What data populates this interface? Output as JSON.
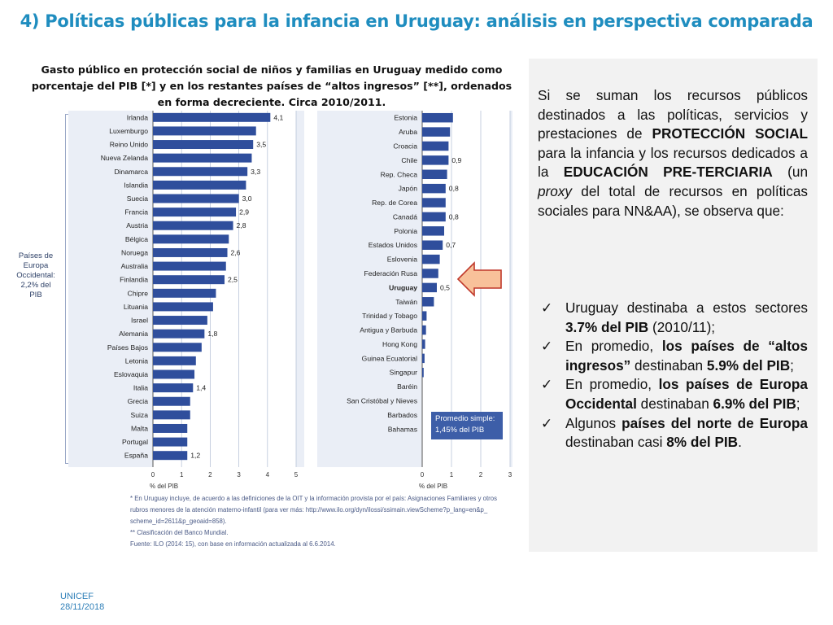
{
  "title": "4) Políticas públicas para la infancia en Uruguay: análisis en perspectiva comparada",
  "chart_heading": "Gasto público en protección social de niños y familias en Uruguay medido como porcentaje del PIB [*] y en los restantes países de “altos ingresos” [**], ordenados en forma decreciente. Circa 2010/2011.",
  "chart_data": [
    {
      "type": "bar",
      "orientation": "horizontal",
      "categories": [
        "Irlanda",
        "Luxemburgo",
        "Reino Unido",
        "Nueva Zelanda",
        "Dinamarca",
        "Islandia",
        "Suecia",
        "Francia",
        "Austria",
        "Bélgica",
        "Noruega",
        "Australia",
        "Finlandia",
        "Chipre",
        "Lituania",
        "Israel",
        "Alemania",
        "Países Bajos",
        "Letonia",
        "Eslovaquia",
        "Italia",
        "Grecia",
        "Suiza",
        "Malta",
        "Portugal",
        "España"
      ],
      "values": [
        4.1,
        3.6,
        3.5,
        3.45,
        3.3,
        3.25,
        3.0,
        2.9,
        2.8,
        2.65,
        2.6,
        2.55,
        2.5,
        2.2,
        2.1,
        1.9,
        1.8,
        1.7,
        1.5,
        1.45,
        1.4,
        1.3,
        1.3,
        1.2,
        1.2,
        1.2
      ],
      "value_labels": [
        "4,1",
        "",
        "3,5",
        "",
        "3,3",
        "",
        "3,0",
        "2,9",
        "2,8",
        "",
        "2,6",
        "",
        "2,5",
        "",
        "",
        "",
        "1,8",
        "",
        "",
        "",
        "1,4",
        "",
        "",
        "",
        "",
        "1,2"
      ],
      "xlim": [
        0,
        5
      ],
      "xticks": [
        "0",
        "1",
        "2",
        "3",
        "4",
        "5"
      ],
      "xlabel": "% del PIB",
      "bar_color": "#2f4e9c",
      "highlight_category": ""
    },
    {
      "type": "bar",
      "orientation": "horizontal",
      "categories": [
        "Estonia",
        "Aruba",
        "Croacia",
        "Chile",
        "Rep. Checa",
        "Japón",
        "Rep. de Corea",
        "Canadá",
        "Polonia",
        "Estados Unidos",
        "Eslovenia",
        "Federación Rusa",
        "Uruguay",
        "Taiwán",
        "Trinidad y Tobago",
        "Antigua y Barbuda",
        "Hong Kong",
        "Guinea Ecuatorial",
        "Singapur",
        "Baréin",
        "San Cristóbal y Nieves",
        "Barbados",
        "Bahamas"
      ],
      "values": [
        1.05,
        0.95,
        0.9,
        0.9,
        0.85,
        0.8,
        0.8,
        0.8,
        0.75,
        0.7,
        0.6,
        0.55,
        0.5,
        0.4,
        0.15,
        0.13,
        0.1,
        0.08,
        0.05,
        0,
        0,
        0,
        0
      ],
      "value_labels": [
        "",
        "",
        "",
        "0,9",
        "",
        "0,8",
        "",
        "0,8",
        "",
        "0,7",
        "",
        "",
        "0,5",
        "",
        "",
        "",
        "",
        "",
        "",
        "",
        "",
        "",
        ""
      ],
      "xlim": [
        0,
        3
      ],
      "xticks": [
        "0",
        "1",
        "2",
        "3"
      ],
      "xlabel": "% del PIB",
      "bar_color": "#2f4e9c",
      "highlight_category": "Uruguay"
    }
  ],
  "note_left": "Países de Europa Occidental: 2,2% del PIB",
  "promedio": "Promedio simple: 1,45% del PIB",
  "footnotes": [
    "* En Uruguay incluye, de acuerdo a las definiciones de la OIT y la información provista por el país: Asignaciones Familiares y otros",
    "rubros menores de la atención materno-infantil (para ver más: http://www.ilo.org/dyn/ilossi/ssimain.viewScheme?p_lang=en&p_",
    "scheme_id=2611&p_geoaid=858).",
    "** Clasificación del Banco Mundial.",
    "Fuente: ILO (2014: 15), con base en información actualizada al 6.6.2014."
  ],
  "panel": {
    "intro_html": "Si se suman los recursos públicos destinados a las políticas, servicios y prestaciones de <b>PROTECCIÓN SOCIAL</b> para la infancia y los recursos dedicados a la <b>EDUCACIÓN PRE-TERCIARIA</b> (un <i>proxy</i> del total de recursos en políticas sociales para NN&amp;AA), se observa que:",
    "bullets_html": [
      "Uruguay destinaba a estos sectores <b>3.7% del PIB</b> (2010/11);",
      "En promedio, <b>los países de “altos ingresos”</b> destinaban <b>5.9% del PIB</b>;",
      "En promedio, <b>los países de Europa Occidental</b> destinaban <b>6.9% del PIB</b>;",
      "Algunos <b>países del norte de Europa</b> destinaban casi <b>8% del PIB</b>."
    ],
    "check_icon": "✓"
  },
  "footer": {
    "org": "UNICEF",
    "date": "28/11/2018"
  }
}
